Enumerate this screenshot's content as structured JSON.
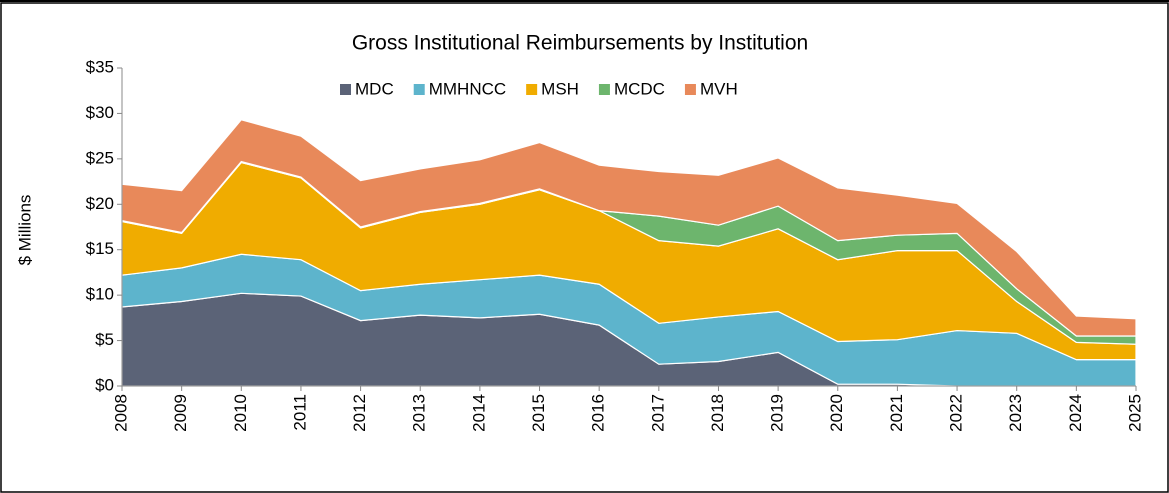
{
  "chart_data": {
    "type": "stacked_area",
    "title": "Gross Institutional Reimbursements by Institution",
    "y_label": "$ Millions",
    "categories": [
      "2008",
      "2009",
      "2010",
      "2011",
      "2012",
      "2013",
      "2014",
      "2015",
      "2016",
      "2017",
      "2018",
      "2019",
      "2020",
      "2021",
      "2022",
      "2023",
      "2024",
      "2025"
    ],
    "series": [
      {
        "name": "MDC",
        "color": "#5b6377",
        "values": [
          8.7,
          9.3,
          10.2,
          9.9,
          7.2,
          7.8,
          7.5,
          7.9,
          6.7,
          2.4,
          2.7,
          3.7,
          0.2,
          0.2,
          0,
          0,
          0,
          0
        ]
      },
      {
        "name": "MMHNCC",
        "color": "#5db4cc",
        "values": [
          3.5,
          3.7,
          4.3,
          4.0,
          3.3,
          3.4,
          4.2,
          4.3,
          4.5,
          4.5,
          4.9,
          4.5,
          4.7,
          4.9,
          6.1,
          5.8,
          2.9,
          2.9
        ]
      },
      {
        "name": "MSH",
        "color": "#f0ac00",
        "values": [
          5.9,
          3.8,
          10.1,
          9.0,
          6.9,
          7.9,
          8.3,
          9.4,
          8.1,
          9.1,
          7.8,
          9.1,
          9.0,
          9.8,
          8.8,
          3.5,
          1.9,
          1.7
        ]
      },
      {
        "name": "MCDC",
        "color": "#6db56d",
        "values": [
          0.1,
          0.1,
          0.1,
          0.1,
          0.1,
          0.1,
          0.1,
          0.1,
          0,
          2.7,
          2.3,
          2.5,
          2.1,
          1.7,
          1.9,
          1.4,
          0.7,
          0.9
        ]
      },
      {
        "name": "MVH",
        "color": "#e8895a",
        "values": [
          4.0,
          4.6,
          4.6,
          4.5,
          5.1,
          4.7,
          4.8,
          5.1,
          5.0,
          4.9,
          5.5,
          5.3,
          5.8,
          4.4,
          3.3,
          4.1,
          2.2,
          1.9
        ]
      }
    ],
    "ylim": [
      0,
      35
    ],
    "yticks": [
      {
        "value": 0,
        "label": "$0"
      },
      {
        "value": 5,
        "label": "$5"
      },
      {
        "value": 10,
        "label": "$10"
      },
      {
        "value": 15,
        "label": "$15"
      },
      {
        "value": 20,
        "label": "$20"
      },
      {
        "value": 25,
        "label": "$25"
      },
      {
        "value": 30,
        "label": "$30"
      },
      {
        "value": 35,
        "label": "$35"
      }
    ],
    "legend": "top"
  }
}
